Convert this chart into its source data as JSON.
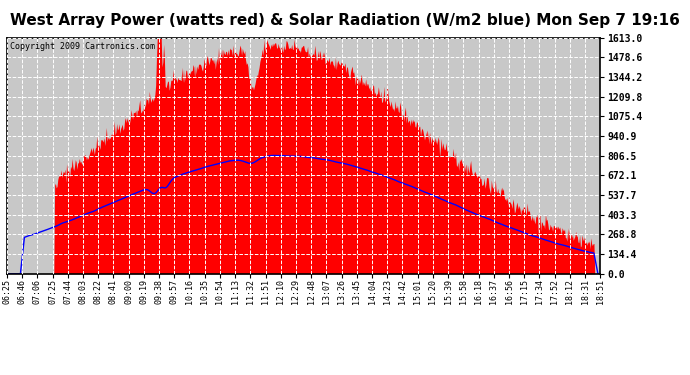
{
  "title": "West Array Power (watts red) & Solar Radiation (W/m2 blue) Mon Sep 7 19:16",
  "copyright": "Copyright 2009 Cartronics.com",
  "title_fontsize": 11,
  "bg_color": "#ffffff",
  "plot_bg_color": "#c8c8c8",
  "y_ticks": [
    0.0,
    134.4,
    268.8,
    403.3,
    537.7,
    672.1,
    806.5,
    940.9,
    1075.4,
    1209.8,
    1344.2,
    1478.6,
    1613.0
  ],
  "ylim": [
    0,
    1613.0
  ],
  "x_labels": [
    "06:25",
    "06:46",
    "07:06",
    "07:25",
    "07:44",
    "08:03",
    "08:22",
    "08:41",
    "09:00",
    "09:19",
    "09:38",
    "09:57",
    "10:16",
    "10:35",
    "10:54",
    "11:13",
    "11:32",
    "11:51",
    "12:10",
    "12:29",
    "12:48",
    "13:07",
    "13:26",
    "13:45",
    "14:04",
    "14:23",
    "14:42",
    "15:01",
    "15:20",
    "15:39",
    "15:58",
    "16:18",
    "16:37",
    "16:56",
    "17:15",
    "17:34",
    "17:52",
    "18:12",
    "18:31",
    "18:51"
  ],
  "red_fill_color": "#ff0000",
  "blue_line_color": "#0000ff",
  "grid_color": "#ffffff",
  "grid_style": "--"
}
